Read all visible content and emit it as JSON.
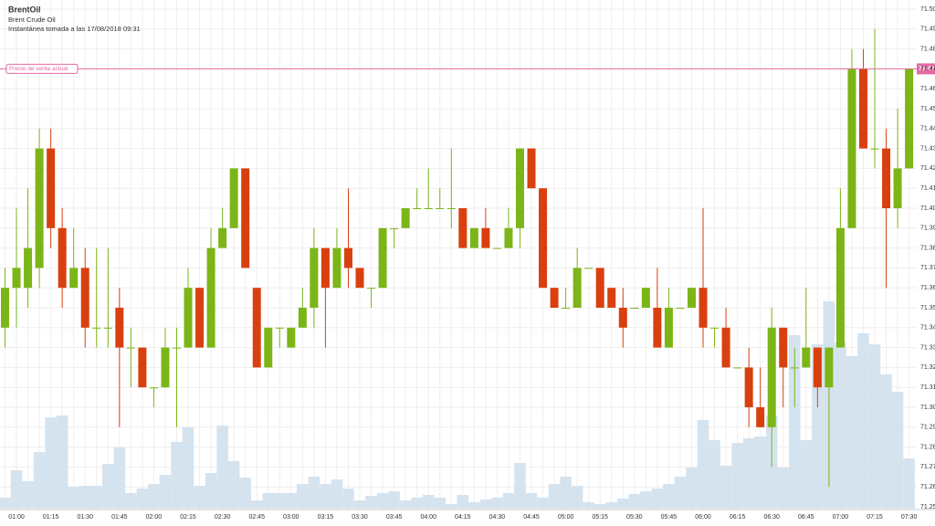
{
  "chart_data": {
    "type": "candlestick",
    "title": "BrentOil",
    "subtitle": "Brent Crude Oil",
    "snapshot": "Instantánea tomada a las 17/08/2018 09:31",
    "categories": [
      null,
      "01:00",
      null,
      null,
      "01:15",
      null,
      null,
      "01:30",
      null,
      null,
      "01:45",
      null,
      null,
      "02:00",
      null,
      null,
      "02:15",
      null,
      null,
      "02:30",
      null,
      null,
      "02:45",
      null,
      null,
      "03:00",
      null,
      null,
      "03:15",
      null,
      null,
      "03:30",
      null,
      null,
      "03:45",
      null,
      null,
      "04:00",
      null,
      null,
      "04:15",
      null,
      null,
      "04:30",
      null,
      null,
      "04:45",
      null,
      null,
      "05:00",
      null,
      null,
      "05:15",
      null,
      null,
      "05:30",
      null,
      null,
      "05:45",
      null,
      null,
      "06:00",
      null,
      null,
      "06:15",
      null,
      null,
      "06:30",
      null,
      null,
      "06:45",
      null,
      null,
      "07:00",
      null,
      null,
      "07:15",
      null,
      null,
      "07:30"
    ],
    "open": [
      71.34,
      71.36,
      71.36,
      71.37,
      71.43,
      71.39,
      71.36,
      71.37,
      71.34,
      71.34,
      71.35,
      71.33,
      71.33,
      71.31,
      71.31,
      71.33,
      71.33,
      71.36,
      71.33,
      71.38,
      71.39,
      71.42,
      71.36,
      71.32,
      71.34,
      71.33,
      71.34,
      71.35,
      71.38,
      71.36,
      71.38,
      71.37,
      71.36,
      71.36,
      71.39,
      71.39,
      71.4,
      71.4,
      71.4,
      71.4,
      71.4,
      71.38,
      71.39,
      71.38,
      71.38,
      71.39,
      71.43,
      71.41,
      71.36,
      71.35,
      71.35,
      71.37,
      71.37,
      71.36,
      71.35,
      71.35,
      71.35,
      71.35,
      71.33,
      71.35,
      71.35,
      71.36,
      71.34,
      71.34,
      71.32,
      71.32,
      71.3,
      71.29,
      71.34,
      71.32,
      71.32,
      71.33,
      71.31,
      71.33,
      71.39,
      71.47,
      71.43,
      71.43,
      71.4,
      71.42
    ],
    "high": [
      71.37,
      71.4,
      71.41,
      71.44,
      71.44,
      71.4,
      71.39,
      71.38,
      71.38,
      71.38,
      71.36,
      71.34,
      71.33,
      71.31,
      71.34,
      71.34,
      71.37,
      71.36,
      71.39,
      71.4,
      71.42,
      71.42,
      71.36,
      71.34,
      71.34,
      71.34,
      71.36,
      71.39,
      71.38,
      71.39,
      71.41,
      71.37,
      71.36,
      71.39,
      71.39,
      71.4,
      71.41,
      71.42,
      71.41,
      71.43,
      71.4,
      71.39,
      71.4,
      71.38,
      71.4,
      71.43,
      71.43,
      71.41,
      71.36,
      71.36,
      71.38,
      71.37,
      71.37,
      71.36,
      71.36,
      71.35,
      71.36,
      71.37,
      71.36,
      71.35,
      71.36,
      71.4,
      71.34,
      71.35,
      71.32,
      71.33,
      71.32,
      71.35,
      71.34,
      71.33,
      71.36,
      71.33,
      71.33,
      71.41,
      71.48,
      71.48,
      71.49,
      71.44,
      71.45,
      71.47
    ],
    "low": [
      71.33,
      71.34,
      71.35,
      71.36,
      71.38,
      71.35,
      71.36,
      71.33,
      71.33,
      71.33,
      71.29,
      71.31,
      71.31,
      71.3,
      71.31,
      71.29,
      71.33,
      71.33,
      71.33,
      71.38,
      71.39,
      71.37,
      71.32,
      71.32,
      71.33,
      71.33,
      71.34,
      71.34,
      71.33,
      71.36,
      71.36,
      71.36,
      71.35,
      71.36,
      71.38,
      71.39,
      71.4,
      71.4,
      71.4,
      71.39,
      71.38,
      71.38,
      71.38,
      71.38,
      71.38,
      71.38,
      71.41,
      71.36,
      71.35,
      71.35,
      71.35,
      71.37,
      71.35,
      71.35,
      71.33,
      71.35,
      71.35,
      71.33,
      71.33,
      71.35,
      71.35,
      71.33,
      71.33,
      71.32,
      71.32,
      71.29,
      71.29,
      71.27,
      71.3,
      71.3,
      71.32,
      71.3,
      71.26,
      71.33,
      71.39,
      71.43,
      71.42,
      71.36,
      71.39,
      71.42
    ],
    "close": [
      71.36,
      71.37,
      71.38,
      71.43,
      71.39,
      71.36,
      71.37,
      71.34,
      71.34,
      71.34,
      71.33,
      71.33,
      71.31,
      71.31,
      71.33,
      71.33,
      71.36,
      71.33,
      71.38,
      71.39,
      71.42,
      71.37,
      71.32,
      71.34,
      71.34,
      71.34,
      71.35,
      71.38,
      71.36,
      71.38,
      71.37,
      71.36,
      71.36,
      71.39,
      71.39,
      71.4,
      71.4,
      71.4,
      71.4,
      71.4,
      71.38,
      71.39,
      71.38,
      71.38,
      71.39,
      71.43,
      71.41,
      71.36,
      71.35,
      71.35,
      71.37,
      71.37,
      71.35,
      71.35,
      71.34,
      71.35,
      71.36,
      71.33,
      71.35,
      71.35,
      71.36,
      71.34,
      71.34,
      71.32,
      71.32,
      71.3,
      71.29,
      71.34,
      71.32,
      71.32,
      71.33,
      71.31,
      71.33,
      71.39,
      71.47,
      71.43,
      71.43,
      71.4,
      71.42,
      71.47
    ],
    "volume": [
      12,
      42,
      30,
      62,
      100,
      102,
      24,
      25,
      25,
      49,
      67,
      17,
      22,
      27,
      37,
      73,
      89,
      25,
      39,
      91,
      52,
      34,
      9,
      17,
      17,
      17,
      27,
      35,
      27,
      32,
      22,
      9,
      14,
      17,
      19,
      9,
      12,
      15,
      12,
      5,
      15,
      7,
      10,
      12,
      17,
      50,
      17,
      12,
      27,
      35,
      25,
      7,
      5,
      7,
      11,
      16,
      19,
      22,
      27,
      35,
      45,
      97,
      75,
      47,
      72,
      77,
      79,
      102,
      45,
      190,
      75,
      180,
      227,
      182,
      167,
      192,
      180,
      147,
      128,
      55
    ],
    "up_color": "#7cb518",
    "down_color": "#d9400f",
    "volume_color": "#d5e3ef",
    "ylim": [
      71.25,
      71.5
    ],
    "yticks": [
      71.25,
      71.26,
      71.27,
      71.28,
      71.29,
      {
        "value": 71.3,
        "label": "71.30"
      },
      71.31,
      71.32,
      71.33,
      71.34,
      71.35,
      71.36,
      71.37,
      71.38,
      71.39,
      {
        "value": 71.4,
        "label": "71.40"
      },
      71.41,
      71.42,
      71.43,
      71.44,
      71.45,
      71.46,
      71.47,
      71.48,
      71.49,
      {
        "value": 71.5,
        "label": "71.50"
      }
    ],
    "grid": true,
    "current_price": {
      "label": "Precio de venta actual",
      "value": 71.47,
      "color": "#e66aa3"
    }
  }
}
